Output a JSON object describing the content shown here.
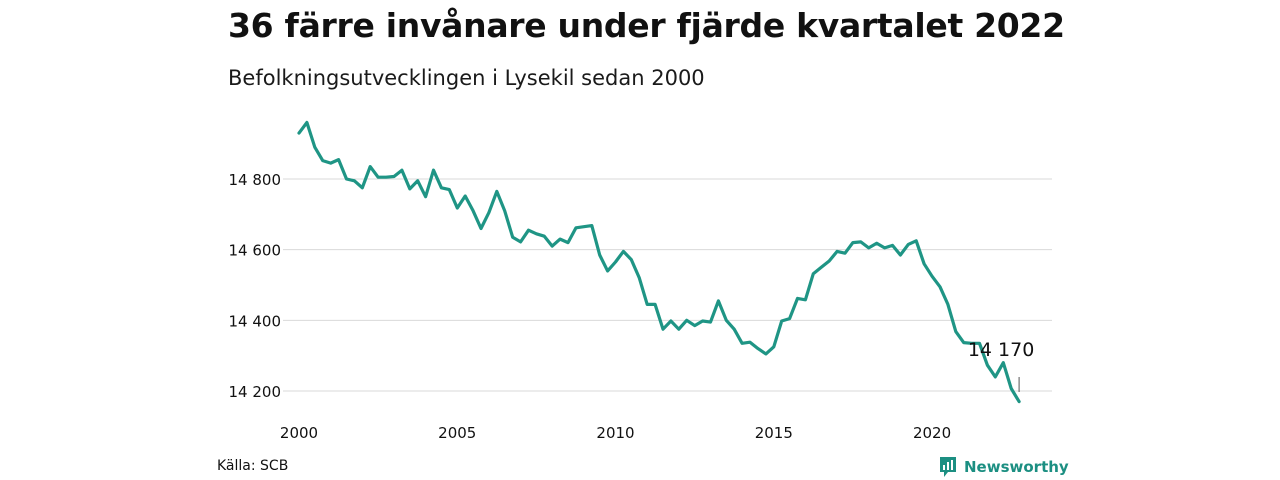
{
  "header": {
    "title": "36 färre invånare under fjärde kvartalet 2022",
    "subtitle": "Befolkningsutvecklingen i Lysekil sedan 2000"
  },
  "footer": {
    "source": "Källa: SCB",
    "brand": "Newsworthy",
    "brand_icon": "newsworthy-logo-icon"
  },
  "colors": {
    "line": "#1f9585",
    "grid": "#d9d9d9",
    "brand": "#1c8f82"
  },
  "chart_data": {
    "type": "line",
    "title": "36 färre invånare under fjärde kvartalet 2022",
    "subtitle": "Befolkningsutvecklingen i Lysekil sedan 2000",
    "xlabel": "",
    "ylabel": "",
    "x_ticks": [
      2000,
      2005,
      2010,
      2015,
      2020
    ],
    "y_ticks": [
      14200,
      14400,
      14600,
      14800
    ],
    "y_tick_labels": [
      "14 200",
      "14 400",
      "14 600",
      "14 800"
    ],
    "xlim": [
      2000,
      2023
    ],
    "ylim": [
      14150,
      14980
    ],
    "grid": "horizontal",
    "annotation": {
      "label": "14 170",
      "x": 2022.75,
      "y": 14170
    },
    "series": [
      {
        "name": "",
        "x": [
          2000.0,
          2000.25,
          2000.5,
          2000.75,
          2001.0,
          2001.25,
          2001.5,
          2001.75,
          2002.0,
          2002.25,
          2002.5,
          2002.75,
          2003.0,
          2003.25,
          2003.5,
          2003.75,
          2004.0,
          2004.25,
          2004.5,
          2004.75,
          2005.0,
          2005.25,
          2005.5,
          2005.75,
          2006.0,
          2006.25,
          2006.5,
          2006.75,
          2007.0,
          2007.25,
          2007.5,
          2007.75,
          2008.0,
          2008.25,
          2008.5,
          2008.75,
          2009.0,
          2009.25,
          2009.5,
          2009.75,
          2010.0,
          2010.25,
          2010.5,
          2010.75,
          2011.0,
          2011.25,
          2011.5,
          2011.75,
          2012.0,
          2012.25,
          2012.5,
          2012.75,
          2013.0,
          2013.25,
          2013.5,
          2013.75,
          2014.0,
          2014.25,
          2014.5,
          2014.75,
          2015.0,
          2015.25,
          2015.5,
          2015.75,
          2016.0,
          2016.25,
          2016.5,
          2016.75,
          2017.0,
          2017.25,
          2017.5,
          2017.75,
          2018.0,
          2018.25,
          2018.5,
          2018.75,
          2019.0,
          2019.25,
          2019.5,
          2019.75,
          2020.0,
          2020.25,
          2020.5,
          2020.75,
          2021.0,
          2021.25,
          2021.5,
          2021.75,
          2022.0,
          2022.25,
          2022.5,
          2022.75
        ],
        "y": [
          14930,
          14960,
          14890,
          14852,
          14845,
          14855,
          14800,
          14795,
          14775,
          14835,
          14805,
          14805,
          14807,
          14825,
          14772,
          14795,
          14750,
          14825,
          14775,
          14770,
          14718,
          14752,
          14710,
          14660,
          14705,
          14765,
          14710,
          14635,
          14622,
          14655,
          14645,
          14638,
          14610,
          14630,
          14620,
          14662,
          14665,
          14668,
          14585,
          14540,
          14565,
          14595,
          14572,
          14520,
          14445,
          14445,
          14375,
          14398,
          14375,
          14400,
          14385,
          14398,
          14395,
          14455,
          14400,
          14375,
          14335,
          14338,
          14320,
          14305,
          14325,
          14398,
          14405,
          14462,
          14458,
          14532,
          14550,
          14568,
          14595,
          14590,
          14620,
          14622,
          14605,
          14618,
          14605,
          14612,
          14585,
          14615,
          14625,
          14560,
          14525,
          14495,
          14445,
          14368,
          14337,
          14335,
          14335,
          14273,
          14240,
          14280,
          14207,
          14170
        ]
      }
    ]
  }
}
